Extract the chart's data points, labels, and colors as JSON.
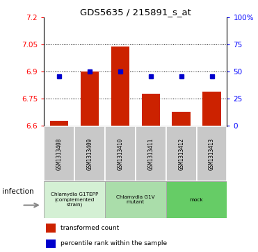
{
  "title": "GDS5635 / 215891_s_at",
  "samples": [
    "GSM1313408",
    "GSM1313409",
    "GSM1313410",
    "GSM1313411",
    "GSM1313412",
    "GSM1313413"
  ],
  "red_values": [
    6.63,
    6.9,
    7.04,
    6.78,
    6.68,
    6.79
  ],
  "blue_values": [
    6.875,
    6.9,
    6.9,
    6.875,
    6.875,
    6.875
  ],
  "ylim": [
    6.6,
    7.2
  ],
  "yticks_left": [
    6.6,
    6.75,
    6.9,
    7.05,
    7.2
  ],
  "yticks_right": [
    0,
    25,
    50,
    75,
    100
  ],
  "yticks_right_labels": [
    "0",
    "25",
    "50",
    "75",
    "100%"
  ],
  "infection_label": "infection",
  "legend_red": "transformed count",
  "legend_blue": "percentile rank within the sample",
  "bar_color": "#cc2200",
  "dot_color": "#0000cc",
  "baseline": 6.6,
  "group_configs": [
    {
      "indices": [
        0,
        1
      ],
      "label": "Chlamydia G1TEPP\n(complemented\nstrain)",
      "facecolor": "#d4f0d4"
    },
    {
      "indices": [
        2,
        3
      ],
      "label": "Chlamydia G1V\nmutant",
      "facecolor": "#aaddaa"
    },
    {
      "indices": [
        4,
        5
      ],
      "label": "mock",
      "facecolor": "#66cc66"
    }
  ],
  "sample_box_color": "#c8c8c8",
  "grid_lines": [
    6.75,
    6.9,
    7.05
  ]
}
